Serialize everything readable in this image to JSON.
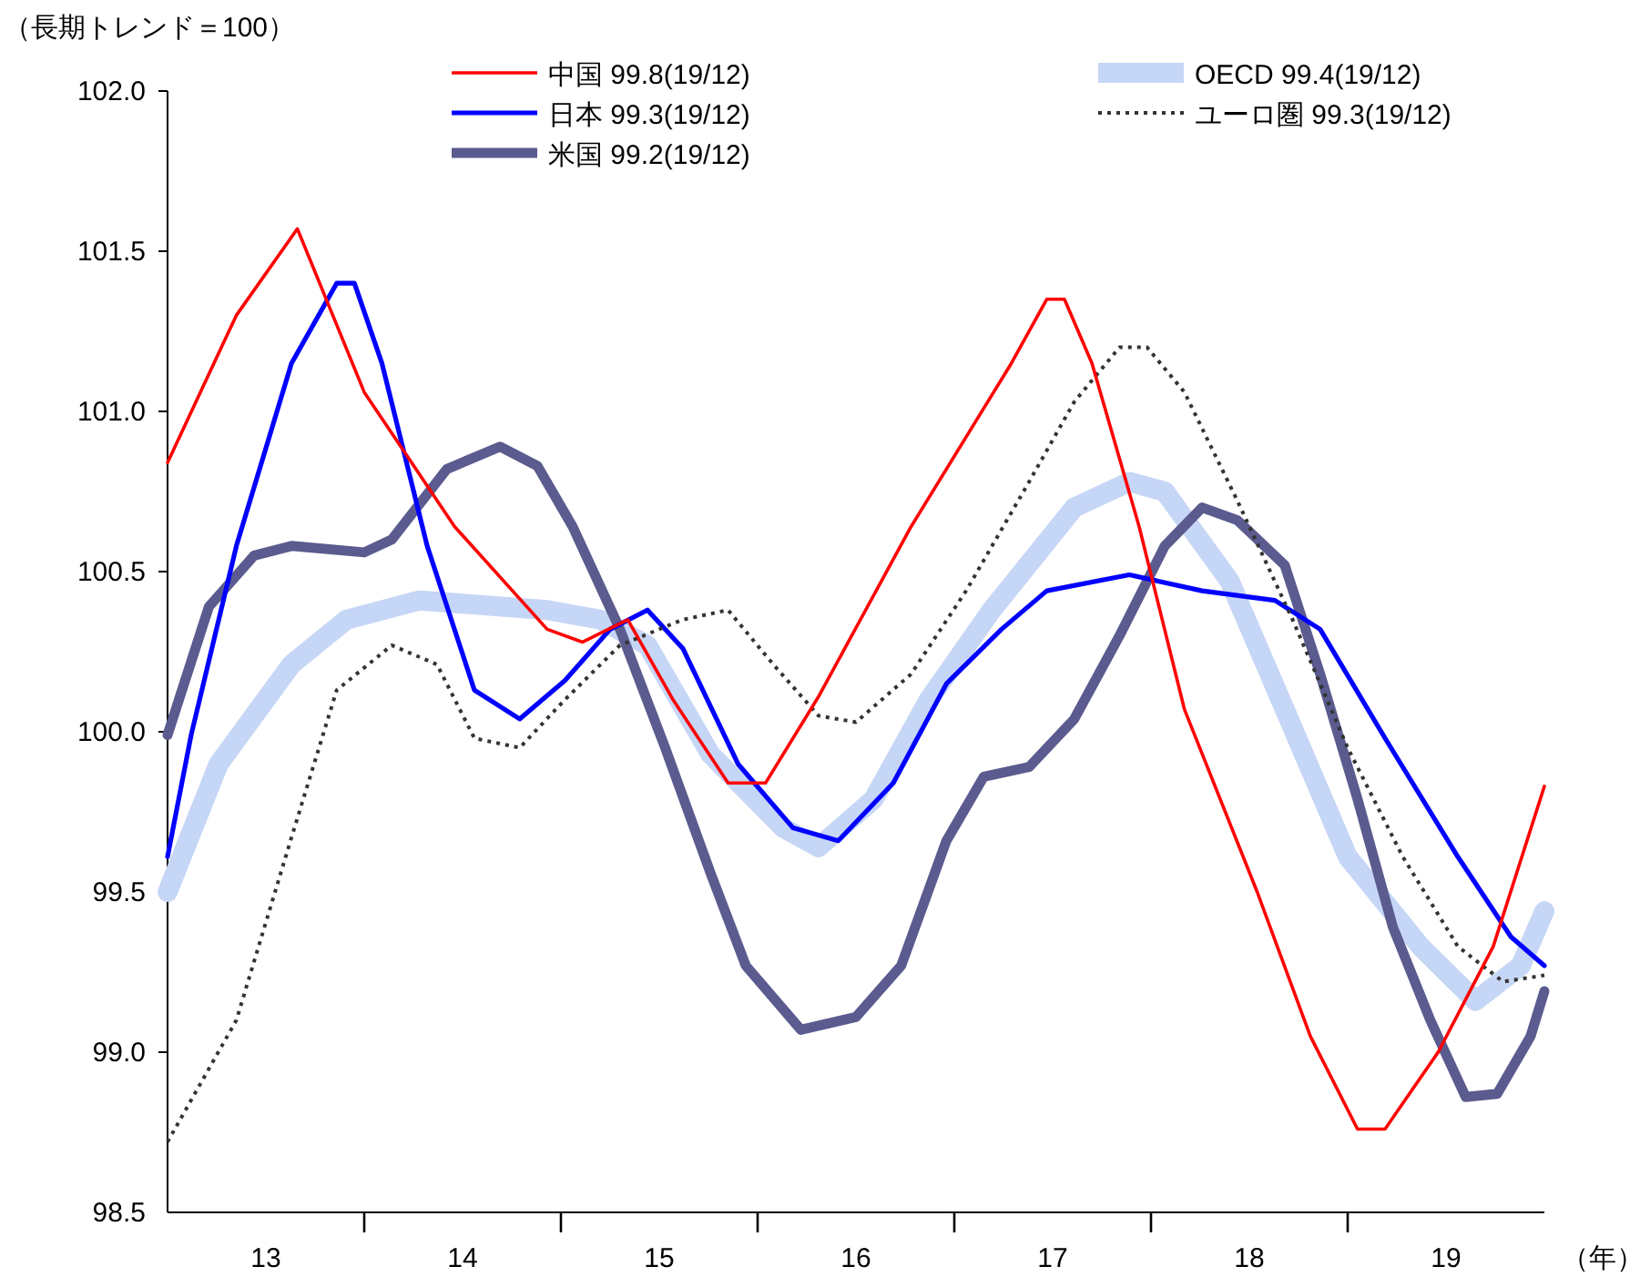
{
  "chart_data": {
    "type": "line",
    "ylabel": "（長期トレンド＝100）",
    "xlabel": "（年）",
    "legend": "top",
    "xlim": [
      12.5,
      19.5
    ],
    "xticks": [
      13,
      {
        "value": 13.5,
        "label": null
      },
      14,
      {
        "value": 14.5,
        "label": null
      },
      15,
      {
        "value": 15.5,
        "label": null
      },
      16,
      {
        "value": 16.5,
        "label": null
      },
      17,
      {
        "value": 17.5,
        "label": null
      },
      18,
      {
        "value": 18.5,
        "label": null
      },
      19
    ],
    "ylim": [
      98.5,
      102
    ],
    "yticks": [
      98.5,
      {
        "value": 99,
        "label": "99.0"
      },
      99.5,
      {
        "value": 100,
        "label": "100.0"
      },
      100.5,
      {
        "value": 101,
        "label": "101.0"
      },
      101.5,
      {
        "value": 102,
        "label": "102.0"
      }
    ],
    "series": [
      {
        "name": "中国 99.8(19/12)",
        "color": "#ff0000",
        "x": [
          12.5,
          12.85,
          13.16,
          13.5,
          13.96,
          14.43,
          14.61,
          14.84,
          15.07,
          15.35,
          15.54,
          15.81,
          16.28,
          16.56,
          16.79,
          16.97,
          17.06,
          17.2,
          17.44,
          17.67,
          18.04,
          18.31,
          18.55,
          18.69,
          18.96,
          19.24,
          19.5
        ],
        "values": [
          100.84,
          101.3,
          101.57,
          101.06,
          100.64,
          100.32,
          100.28,
          100.35,
          100.1,
          99.84,
          99.84,
          100.11,
          100.64,
          100.92,
          101.15,
          101.35,
          101.35,
          101.15,
          100.64,
          100.07,
          99.5,
          99.05,
          98.76,
          98.76,
          99.0,
          99.33,
          99.83
        ]
      },
      {
        "name": "日本 99.3(19/12)",
        "color": "#0000ff",
        "x": [
          12.5,
          12.62,
          12.85,
          13.13,
          13.36,
          13.45,
          13.59,
          13.82,
          14.06,
          14.29,
          14.52,
          14.75,
          14.94,
          15.12,
          15.4,
          15.68,
          15.91,
          16.19,
          16.46,
          16.74,
          16.97,
          17.39,
          17.76,
          18.13,
          18.36,
          18.69,
          19.06,
          19.33,
          19.5
        ],
        "values": [
          99.61,
          99.99,
          100.58,
          101.15,
          101.4,
          101.4,
          101.15,
          100.58,
          100.13,
          100.04,
          100.16,
          100.32,
          100.38,
          100.26,
          99.9,
          99.7,
          99.66,
          99.84,
          100.15,
          100.32,
          100.44,
          100.49,
          100.44,
          100.41,
          100.32,
          99.98,
          99.61,
          99.36,
          99.27
        ]
      },
      {
        "name": "米国 99.2(19/12)",
        "color": "#5b5b8f",
        "x": [
          12.5,
          12.71,
          12.94,
          13.13,
          13.5,
          13.64,
          13.92,
          14.19,
          14.38,
          14.56,
          14.8,
          15.03,
          15.26,
          15.44,
          15.72,
          16.0,
          16.23,
          16.46,
          16.65,
          16.88,
          17.11,
          17.34,
          17.57,
          17.76,
          17.94,
          18.18,
          18.36,
          18.55,
          18.73,
          18.92,
          19.1,
          19.26,
          19.43,
          19.5
        ],
        "values": [
          99.99,
          100.39,
          100.55,
          100.58,
          100.56,
          100.6,
          100.82,
          100.89,
          100.83,
          100.64,
          100.32,
          99.95,
          99.56,
          99.27,
          99.07,
          99.11,
          99.27,
          99.66,
          99.86,
          99.89,
          100.04,
          100.3,
          100.58,
          100.7,
          100.66,
          100.52,
          100.18,
          99.79,
          99.39,
          99.1,
          98.86,
          98.87,
          99.05,
          99.19
        ]
      },
      {
        "name": "OECD 99.4(19/12)",
        "color": "#c6d6f6",
        "x": [
          12.5,
          12.76,
          13.13,
          13.41,
          13.78,
          14.43,
          14.7,
          14.94,
          15.26,
          15.63,
          15.81,
          16.09,
          16.37,
          16.69,
          17.11,
          17.39,
          17.57,
          17.9,
          18.18,
          18.5,
          18.87,
          19.15,
          19.38,
          19.5
        ],
        "values": [
          99.5,
          99.9,
          100.21,
          100.35,
          100.41,
          100.38,
          100.35,
          100.27,
          99.93,
          99.7,
          99.64,
          99.79,
          100.1,
          100.38,
          100.7,
          100.78,
          100.75,
          100.47,
          100.07,
          99.61,
          99.33,
          99.16,
          99.27,
          99.44
        ]
      },
      {
        "name": "ユーロ圏 99.3(19/12)",
        "color": "#333333",
        "line_style": "dotted",
        "x": [
          12.5,
          12.85,
          13.13,
          13.36,
          13.64,
          13.87,
          14.06,
          14.29,
          14.52,
          14.8,
          15.12,
          15.35,
          15.58,
          15.81,
          16.0,
          16.28,
          16.56,
          16.88,
          17.11,
          17.34,
          17.48,
          17.67,
          17.94,
          18.22,
          18.5,
          18.78,
          19.06,
          19.29,
          19.5
        ],
        "values": [
          98.72,
          99.1,
          99.67,
          100.13,
          100.27,
          100.21,
          99.98,
          99.95,
          100.1,
          100.27,
          100.35,
          100.38,
          100.21,
          100.05,
          100.03,
          100.18,
          100.44,
          100.78,
          101.03,
          101.2,
          101.2,
          101.06,
          100.72,
          100.35,
          99.95,
          99.61,
          99.33,
          99.22,
          99.24
        ]
      }
    ]
  }
}
